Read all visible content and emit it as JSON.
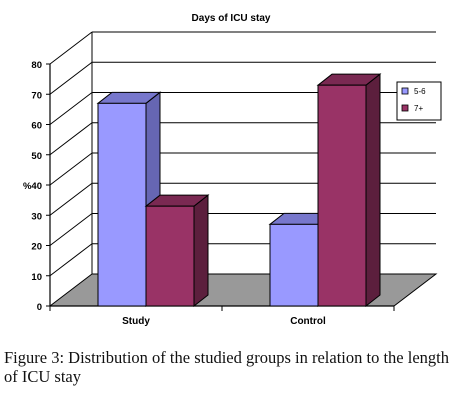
{
  "chart_data": {
    "type": "bar",
    "title": "Days of ICU stay",
    "ylabel": "%",
    "xlabel": "",
    "categories": [
      "Study",
      "Control"
    ],
    "series": [
      {
        "name": "5-6",
        "values": [
          67,
          27
        ]
      },
      {
        "name": "7+",
        "values": [
          33,
          73
        ]
      }
    ],
    "ylim": [
      0,
      80
    ],
    "yticks": [
      0,
      10,
      20,
      30,
      40,
      50,
      60,
      70,
      80
    ],
    "grid": true,
    "three_d": true,
    "legend": "right",
    "colors": {
      "series": [
        "#9999FF",
        "#993366"
      ],
      "series_side": [
        "#6666B3",
        "#5C1F3D"
      ],
      "series_top": [
        "#7777CC",
        "#7A2952"
      ],
      "floor": "#999999",
      "wall": "#ffffff"
    }
  },
  "caption": {
    "label": "Figure 3:",
    "text": "Distribution of the studied groups in relation to the length of ICU stay"
  }
}
